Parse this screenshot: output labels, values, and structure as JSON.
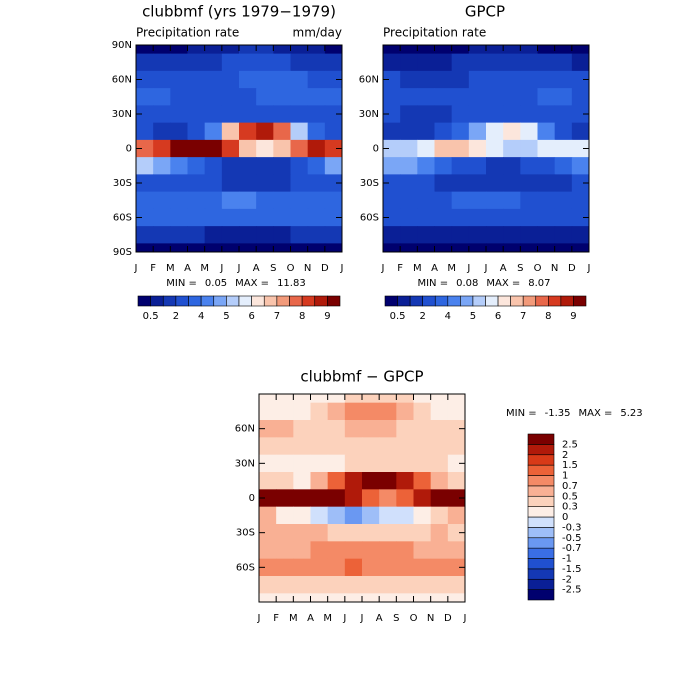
{
  "chart_data": [
    {
      "type": "heatmap",
      "title": "clubbmf (yrs 1979−1979)",
      "subtitle_left": "Precipitation rate",
      "subtitle_right": "mm/day",
      "x_labels": [
        "J",
        "F",
        "M",
        "A",
        "M",
        "J",
        "J",
        "A",
        "S",
        "O",
        "N",
        "D",
        "J"
      ],
      "y": [
        90,
        75,
        60,
        45,
        30,
        15,
        0,
        -15,
        -30,
        -45,
        -60,
        -75,
        -90
      ],
      "ylim": [
        -90,
        90
      ],
      "yticks": [
        {
          "value": 90,
          "label": "90N"
        },
        {
          "value": 60,
          "label": "60N"
        },
        {
          "value": 30,
          "label": "30N"
        },
        0,
        {
          "value": -30,
          "label": "30S"
        },
        {
          "value": -60,
          "label": "60S"
        },
        {
          "value": -90,
          "label": "90S"
        }
      ],
      "z": [
        [
          0.4,
          0.4,
          0.4,
          0.5,
          0.6,
          0.8,
          1,
          1,
          0.8,
          0.6,
          0.5,
          0.4
        ],
        [
          1,
          1,
          1,
          1.2,
          1.5,
          2,
          2.5,
          2.5,
          2,
          1.5,
          1.2,
          1
        ],
        [
          2.5,
          2.3,
          2,
          2,
          2.2,
          2.8,
          3.2,
          3.4,
          3.2,
          3,
          2.8,
          2.6
        ],
        [
          3.2,
          3,
          2.8,
          2.6,
          2.5,
          2.6,
          2.8,
          3,
          3.2,
          3.4,
          3.4,
          3.3
        ],
        [
          2.2,
          2,
          2,
          2,
          2.2,
          2.6,
          2.8,
          2.8,
          2.6,
          2.4,
          2.3,
          2.2
        ],
        [
          2,
          1.8,
          1.8,
          2.5,
          4,
          6.5,
          8,
          8.5,
          7.5,
          5,
          3,
          2.2
        ],
        [
          7.5,
          8,
          9,
          9.5,
          9.5,
          8,
          6.5,
          6,
          6.5,
          7.5,
          8.5,
          8
        ],
        [
          5,
          4.5,
          4,
          3,
          2.2,
          1.8,
          1.6,
          1.6,
          1.8,
          2.5,
          3.5,
          4.5
        ],
        [
          2.5,
          2.6,
          2.6,
          2.4,
          2,
          1.8,
          1.6,
          1.6,
          1.8,
          2,
          2.3,
          2.4
        ],
        [
          3.2,
          3.2,
          3.4,
          3.6,
          3.8,
          4,
          4,
          3.8,
          3.6,
          3.4,
          3.2,
          3.2
        ],
        [
          3,
          3,
          3.2,
          3.2,
          3.2,
          3.2,
          3,
          3,
          3,
          3,
          3,
          3
        ],
        [
          1,
          1,
          1,
          1,
          0.9,
          0.8,
          0.8,
          0.8,
          0.9,
          1,
          1,
          1
        ],
        [
          0.3,
          0.3,
          0.3,
          0.3,
          0.3,
          0.3,
          0.3,
          0.3,
          0.3,
          0.3,
          0.3,
          0.3
        ]
      ],
      "stats": {
        "min_label": "MIN =",
        "min": 0.05,
        "max_label": "MAX =",
        "max": 11.83
      },
      "colorbar": "bottom",
      "levels": [
        0.5,
        1,
        2,
        3,
        4,
        4.5,
        5,
        5.5,
        6,
        6.5,
        7,
        7.5,
        8,
        8.5,
        9
      ],
      "level_labels": [
        0.5,
        2,
        4,
        5,
        6,
        7,
        8,
        9
      ],
      "colors": [
        "#00006e",
        "#0a1f96",
        "#1438b4",
        "#2050d0",
        "#2e66e0",
        "#4a82ee",
        "#7aa6f6",
        "#b4cdfa",
        "#e4eefc",
        "#fce6dc",
        "#f9c4ac",
        "#f29a7a",
        "#e8674a",
        "#d63a20",
        "#b01a0a",
        "#7a0000"
      ]
    },
    {
      "type": "heatmap",
      "title": "GPCP",
      "subtitle_left": "Precipitation rate",
      "x_labels": [
        "J",
        "F",
        "M",
        "A",
        "M",
        "J",
        "J",
        "A",
        "S",
        "O",
        "N",
        "D",
        "J"
      ],
      "y": [
        90,
        75,
        60,
        45,
        30,
        15,
        0,
        -15,
        -30,
        -45,
        -60,
        -75,
        -90
      ],
      "ylim": [
        -90,
        90
      ],
      "yticks": [
        {
          "value": 60,
          "label": "60N"
        },
        {
          "value": 30,
          "label": "30N"
        },
        0,
        {
          "value": -30,
          "label": "30S"
        },
        {
          "value": -60,
          "label": "60S"
        }
      ],
      "z": [
        [
          0.3,
          0.3,
          0.3,
          0.3,
          0.4,
          0.5,
          0.6,
          0.6,
          0.5,
          0.4,
          0.3,
          0.3
        ],
        [
          0.8,
          0.8,
          0.8,
          0.8,
          1,
          1.3,
          1.6,
          1.6,
          1.4,
          1.2,
          1,
          0.9
        ],
        [
          2,
          1.8,
          1.6,
          1.6,
          1.8,
          2.2,
          2.6,
          2.8,
          2.8,
          2.6,
          2.4,
          2.2
        ],
        [
          2.8,
          2.6,
          2.4,
          2.2,
          2.2,
          2.2,
          2.4,
          2.6,
          2.8,
          3,
          3,
          2.9
        ],
        [
          2,
          1.8,
          1.8,
          1.8,
          2,
          2.2,
          2.4,
          2.4,
          2.2,
          2,
          2,
          2
        ],
        [
          1.6,
          1.5,
          1.6,
          2,
          3,
          4.5,
          5.5,
          6,
          5.5,
          4,
          2.5,
          1.8
        ],
        [
          5,
          5.2,
          5.8,
          6.5,
          6.5,
          6,
          5.5,
          5.2,
          5.2,
          5.5,
          5.8,
          5.5
        ],
        [
          4.5,
          4.5,
          4,
          3.2,
          2.5,
          2,
          1.8,
          1.8,
          2,
          2.5,
          3.2,
          4
        ],
        [
          2,
          2,
          2,
          1.8,
          1.6,
          1.4,
          1.3,
          1.3,
          1.4,
          1.6,
          1.8,
          2
        ],
        [
          2.6,
          2.6,
          2.8,
          2.9,
          3,
          3.1,
          3.1,
          3,
          2.9,
          2.8,
          2.7,
          2.6
        ],
        [
          2.2,
          2.2,
          2.3,
          2.3,
          2.3,
          2.2,
          2.1,
          2.1,
          2.1,
          2.1,
          2.1,
          2.2
        ],
        [
          0.6,
          0.6,
          0.6,
          0.6,
          0.5,
          0.5,
          0.5,
          0.5,
          0.5,
          0.6,
          0.6,
          0.6
        ],
        [
          0.2,
          0.2,
          0.2,
          0.2,
          0.2,
          0.2,
          0.2,
          0.2,
          0.2,
          0.2,
          0.2,
          0.2
        ]
      ],
      "stats": {
        "min_label": "MIN =",
        "min": 0.08,
        "max_label": "MAX =",
        "max": 8.07
      },
      "colorbar": "bottom",
      "levels": [
        0.5,
        1,
        2,
        3,
        4,
        4.5,
        5,
        5.5,
        6,
        6.5,
        7,
        7.5,
        8,
        8.5,
        9
      ],
      "level_labels": [
        0.5,
        2,
        4,
        5,
        6,
        7,
        8,
        9
      ],
      "colors": [
        "#00006e",
        "#0a1f96",
        "#1438b4",
        "#2050d0",
        "#2e66e0",
        "#4a82ee",
        "#7aa6f6",
        "#b4cdfa",
        "#e4eefc",
        "#fce6dc",
        "#f9c4ac",
        "#f29a7a",
        "#e8674a",
        "#d63a20",
        "#b01a0a",
        "#7a0000"
      ]
    },
    {
      "type": "heatmap",
      "title": "clubbmf − GPCP",
      "x_labels": [
        "J",
        "F",
        "M",
        "A",
        "M",
        "J",
        "J",
        "A",
        "S",
        "O",
        "N",
        "D",
        "J"
      ],
      "y": [
        90,
        75,
        60,
        45,
        30,
        15,
        0,
        -15,
        -30,
        -45,
        -60,
        -75,
        -90
      ],
      "ylim": [
        -90,
        90
      ],
      "yticks": [
        {
          "value": 60,
          "label": "60N"
        },
        {
          "value": 30,
          "label": "30N"
        },
        0,
        {
          "value": -30,
          "label": "30S"
        },
        {
          "value": -60,
          "label": "60S"
        }
      ],
      "z": [
        [
          0.1,
          0.1,
          0.1,
          0.2,
          0.2,
          0.3,
          0.4,
          0.4,
          0.3,
          0.2,
          0.2,
          0.1
        ],
        [
          0.2,
          0.2,
          0.2,
          0.4,
          0.5,
          0.7,
          0.9,
          0.9,
          0.6,
          0.3,
          0.2,
          0.1
        ],
        [
          0.5,
          0.5,
          0.4,
          0.4,
          0.4,
          0.6,
          0.6,
          0.6,
          0.4,
          0.4,
          0.4,
          0.4
        ],
        [
          0.4,
          0.4,
          0.4,
          0.4,
          0.3,
          0.4,
          0.4,
          0.4,
          0.4,
          0.4,
          0.4,
          0.4
        ],
        [
          0.2,
          0.2,
          0.2,
          0.2,
          0.2,
          0.4,
          0.4,
          0.4,
          0.4,
          0.4,
          0.3,
          0.2
        ],
        [
          0.4,
          0.3,
          0.2,
          0.5,
          1,
          2,
          2.5,
          2.5,
          2,
          1,
          0.5,
          0.4
        ],
        [
          2.5,
          2.8,
          3.2,
          3,
          3,
          2,
          1,
          0.8,
          1.3,
          2,
          2.7,
          2.5
        ],
        [
          0.5,
          0,
          0,
          -0.2,
          -0.4,
          -0.6,
          -0.4,
          -0.2,
          -0.2,
          0,
          0.3,
          0.5
        ],
        [
          0.5,
          0.6,
          0.6,
          0.6,
          0.4,
          0.4,
          0.3,
          0.3,
          0.4,
          0.4,
          0.5,
          0.4
        ],
        [
          0.6,
          0.6,
          0.6,
          0.7,
          0.8,
          0.9,
          0.9,
          0.8,
          0.7,
          0.6,
          0.5,
          0.6
        ],
        [
          0.8,
          0.8,
          0.9,
          0.9,
          0.9,
          1,
          0.9,
          0.9,
          0.9,
          0.9,
          0.9,
          0.8
        ],
        [
          0.4,
          0.4,
          0.4,
          0.4,
          0.4,
          0.3,
          0.3,
          0.3,
          0.4,
          0.4,
          0.4,
          0.4
        ],
        [
          0.1,
          0.1,
          0.1,
          0.1,
          0.1,
          0.1,
          0.1,
          0.1,
          0.1,
          0.1,
          0.1,
          0.1
        ]
      ],
      "stats": {
        "min_label": "MIN =",
        "min": -1.35,
        "max_label": "MAX =",
        "max": 5.23
      },
      "colorbar": "right",
      "levels": [
        -2.5,
        -2,
        -1.5,
        -1,
        -0.7,
        -0.5,
        -0.3,
        0,
        0.3,
        0.5,
        0.7,
        1,
        1.5,
        2,
        2.5
      ],
      "colors": [
        "#00006e",
        "#0a1f96",
        "#1438b4",
        "#2050d0",
        "#3a6ee6",
        "#6a98f2",
        "#9ebef8",
        "#d0e0fc",
        "#fdeee6",
        "#fcd2bc",
        "#f9b094",
        "#f48a66",
        "#ec6238",
        "#d83a18",
        "#b01a0a",
        "#7a0000"
      ]
    }
  ]
}
